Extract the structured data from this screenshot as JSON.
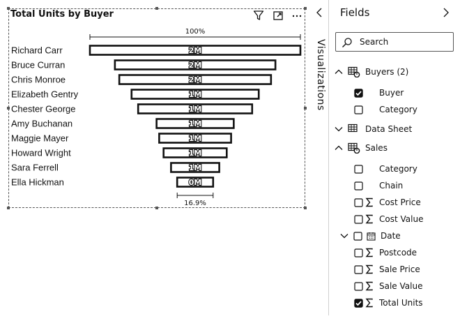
{
  "visual": {
    "title": "Total Units by Buyer",
    "icons": [
      "filter-icon",
      "focus-mode-icon",
      "more-options-icon"
    ]
  },
  "chart_data": {
    "type": "funnel",
    "title": "Total Units by Buyer",
    "categories": [
      "Richard Carr",
      "Bruce Curran",
      "Chris Monroe",
      "Elizabeth Gentry",
      "Chester George",
      "Amy Buchanan",
      "Maggie Mayer",
      "Howard Wright",
      "Sara Ferrell",
      "Ella Hickman"
    ],
    "values": [
      2.4,
      1.83,
      1.73,
      1.45,
      1.3,
      0.88,
      0.82,
      0.72,
      0.55,
      0.41
    ],
    "data_labels": [
      "2M",
      "2M",
      "2M",
      "1M",
      "1M",
      "1M",
      "1M",
      "1M",
      "1M",
      "0M"
    ],
    "top_percent_label": "100%",
    "bottom_percent_label": "16.9%",
    "unit": "M"
  },
  "visualizations_pane": {
    "label": "Visualizations"
  },
  "fields_pane": {
    "title": "Fields",
    "search_placeholder": "Search",
    "tree": [
      {
        "label": "Buyers (2)",
        "kind": "table",
        "expanded": true
      },
      {
        "label": "Buyer",
        "kind": "field",
        "checked": true
      },
      {
        "label": "Category",
        "kind": "field",
        "checked": false
      },
      {
        "label": "Data Sheet",
        "kind": "table",
        "expanded": false
      },
      {
        "label": "Sales",
        "kind": "table",
        "expanded": true
      },
      {
        "label": "Category",
        "kind": "field",
        "checked": false
      },
      {
        "label": "Chain",
        "kind": "field",
        "checked": false
      },
      {
        "label": "Cost Price",
        "kind": "measure",
        "checked": false
      },
      {
        "label": "Cost Value",
        "kind": "measure",
        "checked": false
      },
      {
        "label": "Date",
        "kind": "date",
        "checked": false,
        "expanded": false
      },
      {
        "label": "Postcode",
        "kind": "measure",
        "checked": false
      },
      {
        "label": "Sale Price",
        "kind": "measure",
        "checked": false
      },
      {
        "label": "Sale Value",
        "kind": "measure",
        "checked": false
      },
      {
        "label": "Total Units",
        "kind": "measure",
        "checked": true
      }
    ]
  }
}
